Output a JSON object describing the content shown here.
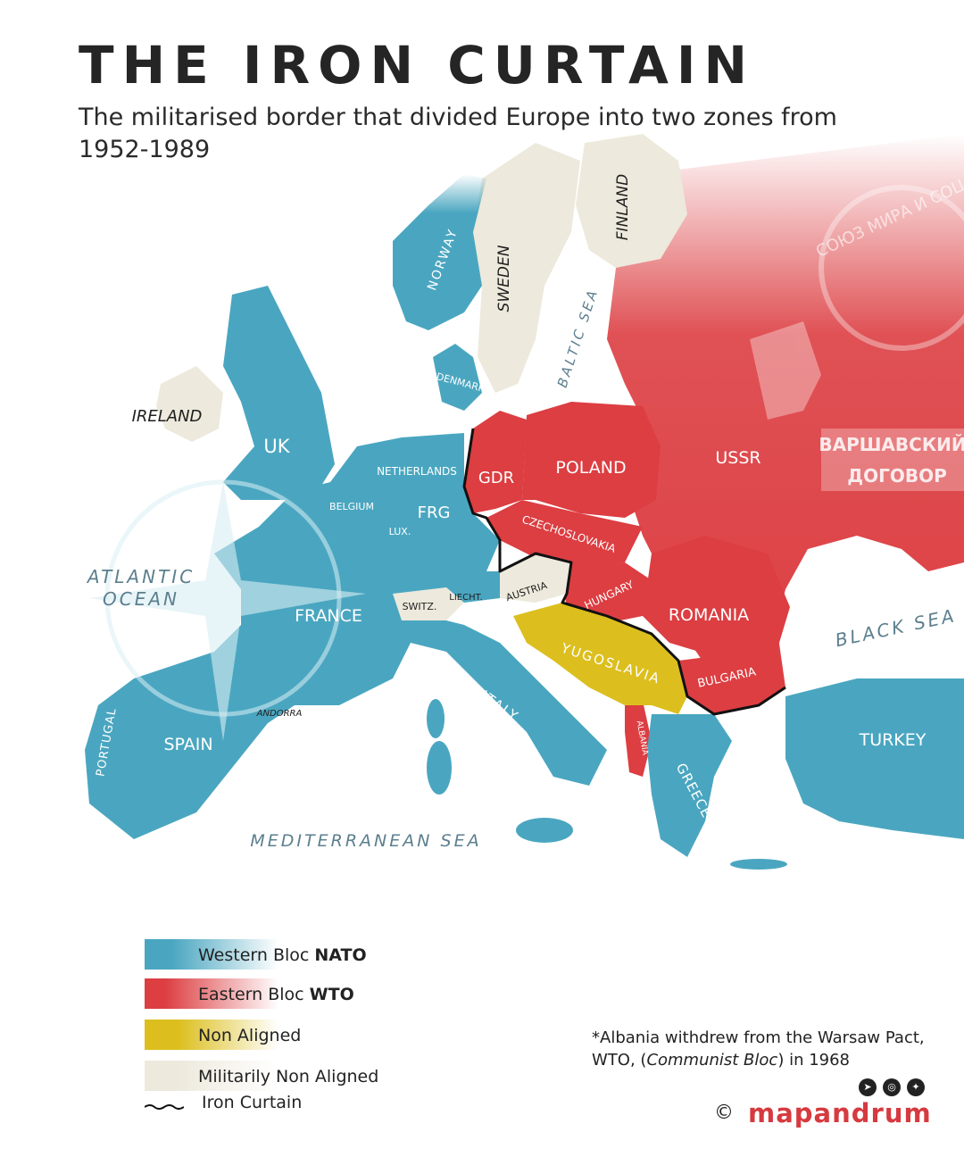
{
  "title": "THE IRON CURTAIN",
  "subtitle": "The militarised border that divided Europe into two zones from 1952-1989",
  "colors": {
    "nato": "#4aa6c0",
    "wto": "#dc3e42",
    "non_aligned": "#dcbf1e",
    "militarily_non_aligned": "#ede9dc",
    "sea": "#ffffff",
    "iron_curtain": "#111111"
  },
  "map": {
    "seas": {
      "atlantic_1": "ATLANTIC",
      "atlantic_2": "OCEAN",
      "mediterranean": "MEDITERRANEAN SEA",
      "baltic": "BALTIC SEA",
      "black": "BLACK SEA"
    },
    "countries": {
      "uk": "UK",
      "ireland": "IRELAND",
      "norway": "NORWAY",
      "sweden": "SWEDEN",
      "finland": "FINLAND",
      "denmark": "DENMARK",
      "netherlands": "NETHERLANDS",
      "belgium": "BELGIUM",
      "lux": "LUX.",
      "frg": "FRG",
      "gdr": "GDR",
      "poland": "POLAND",
      "ussr": "USSR",
      "czechoslovakia": "CZECHOSLOVAKIA",
      "austria": "AUSTRIA",
      "switz": "SWITZ.",
      "liecht": "LIECHT.",
      "hungary": "HUNGARY",
      "romania": "ROMANIA",
      "yugoslavia": "YUGOSLAVIA",
      "bulgaria": "BULGARIA",
      "albania": "ALBANIA",
      "greece": "GREECE",
      "turkey": "TURKEY",
      "italy": "ITALY",
      "france": "FRANCE",
      "spain": "SPAIN",
      "portugal": "PORTUGAL",
      "andorra": "ANDORRA"
    },
    "emblem": {
      "ring_text": "СОЮЗ МИРА И СОЦ",
      "banner_line1": "ВАРШАВСКИЙ",
      "banner_line2": "ДОГОВОР"
    }
  },
  "legend": {
    "nato_prefix": "Western Bloc ",
    "nato_bold": "NATO",
    "wto_prefix": "Eastern Bloc ",
    "wto_bold": "WTO",
    "non_aligned": "Non Aligned",
    "militarily_non_aligned": "Militarily Non Aligned",
    "iron_curtain": "Iron Curtain"
  },
  "footnote": {
    "line1": "*Albania withdrew from the Warsaw Pact,",
    "line2_prefix": "WTO, (",
    "line2_italic": "Communist Bloc",
    "line2_suffix": ") in 1968"
  },
  "brand": {
    "copyright": "©",
    "name": "mapandrum",
    "social_icons": [
      "telegram-icon",
      "instagram-icon",
      "twitter-icon"
    ]
  }
}
